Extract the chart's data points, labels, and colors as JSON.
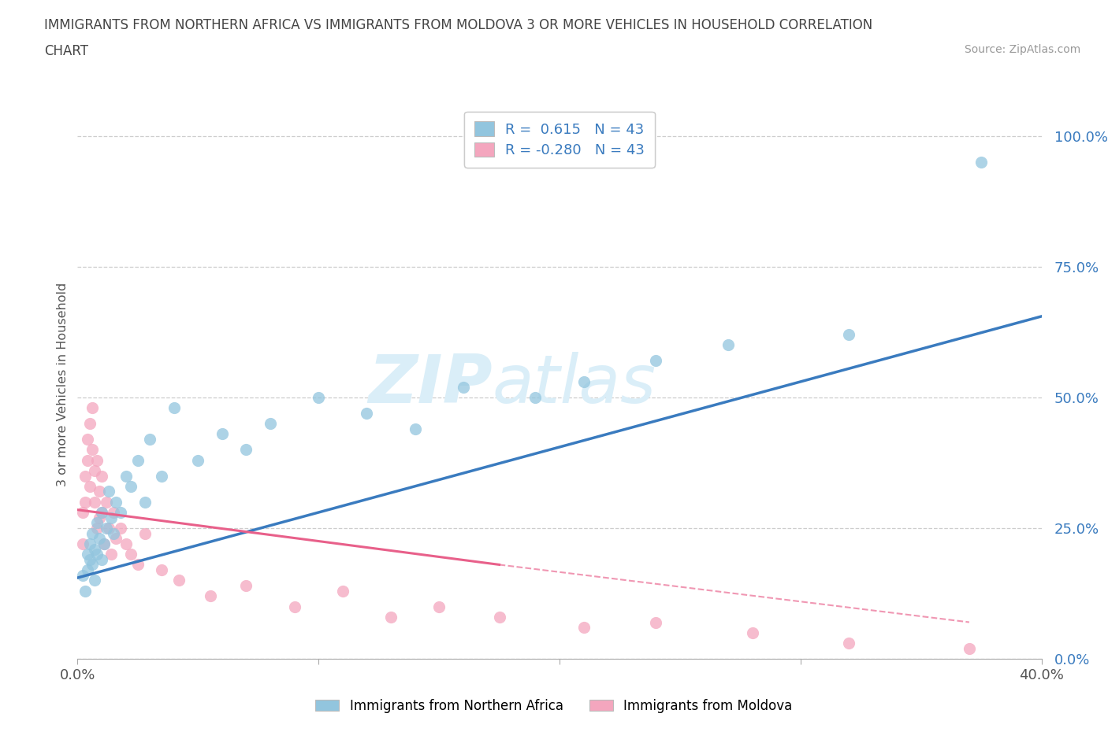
{
  "title_line1": "IMMIGRANTS FROM NORTHERN AFRICA VS IMMIGRANTS FROM MOLDOVA 3 OR MORE VEHICLES IN HOUSEHOLD CORRELATION",
  "title_line2": "CHART",
  "source_text": "Source: ZipAtlas.com",
  "ylabel": "3 or more Vehicles in Household",
  "xlim": [
    0.0,
    0.4
  ],
  "ylim": [
    0.0,
    1.05
  ],
  "ytick_labels": [
    "0.0%",
    "25.0%",
    "50.0%",
    "75.0%",
    "100.0%"
  ],
  "ytick_values": [
    0.0,
    0.25,
    0.5,
    0.75,
    1.0
  ],
  "xtick_labels": [
    "0.0%",
    "",
    "",
    "",
    "40.0%"
  ],
  "xtick_values": [
    0.0,
    0.1,
    0.2,
    0.3,
    0.4
  ],
  "R_blue": 0.615,
  "N_blue": 43,
  "R_pink": -0.28,
  "N_pink": 43,
  "blue_color": "#92c5de",
  "pink_color": "#f4a6be",
  "blue_line_color": "#3a7bbf",
  "pink_line_color": "#e8608a",
  "watermark_color": "#daeef8",
  "legend_label_blue": "Immigrants from Northern Africa",
  "legend_label_pink": "Immigrants from Moldova",
  "blue_x": [
    0.002,
    0.003,
    0.004,
    0.004,
    0.005,
    0.005,
    0.006,
    0.006,
    0.007,
    0.007,
    0.008,
    0.008,
    0.009,
    0.01,
    0.01,
    0.011,
    0.012,
    0.013,
    0.014,
    0.015,
    0.016,
    0.018,
    0.02,
    0.022,
    0.025,
    0.028,
    0.03,
    0.035,
    0.04,
    0.05,
    0.06,
    0.07,
    0.08,
    0.1,
    0.12,
    0.14,
    0.16,
    0.19,
    0.21,
    0.24,
    0.27,
    0.32,
    0.375
  ],
  "blue_y": [
    0.16,
    0.13,
    0.2,
    0.17,
    0.22,
    0.19,
    0.18,
    0.24,
    0.15,
    0.21,
    0.2,
    0.26,
    0.23,
    0.19,
    0.28,
    0.22,
    0.25,
    0.32,
    0.27,
    0.24,
    0.3,
    0.28,
    0.35,
    0.33,
    0.38,
    0.3,
    0.42,
    0.35,
    0.48,
    0.38,
    0.43,
    0.4,
    0.45,
    0.5,
    0.47,
    0.44,
    0.52,
    0.5,
    0.53,
    0.57,
    0.6,
    0.62,
    0.95
  ],
  "pink_x": [
    0.002,
    0.002,
    0.003,
    0.003,
    0.004,
    0.004,
    0.005,
    0.005,
    0.006,
    0.006,
    0.007,
    0.007,
    0.008,
    0.008,
    0.009,
    0.009,
    0.01,
    0.01,
    0.011,
    0.012,
    0.013,
    0.014,
    0.015,
    0.016,
    0.018,
    0.02,
    0.022,
    0.025,
    0.028,
    0.035,
    0.042,
    0.055,
    0.07,
    0.09,
    0.11,
    0.13,
    0.15,
    0.175,
    0.21,
    0.24,
    0.28,
    0.32,
    0.37
  ],
  "pink_y": [
    0.28,
    0.22,
    0.35,
    0.3,
    0.42,
    0.38,
    0.45,
    0.33,
    0.4,
    0.48,
    0.36,
    0.3,
    0.38,
    0.25,
    0.32,
    0.27,
    0.35,
    0.28,
    0.22,
    0.3,
    0.25,
    0.2,
    0.28,
    0.23,
    0.25,
    0.22,
    0.2,
    0.18,
    0.24,
    0.17,
    0.15,
    0.12,
    0.14,
    0.1,
    0.13,
    0.08,
    0.1,
    0.08,
    0.06,
    0.07,
    0.05,
    0.03,
    0.02
  ],
  "blue_line_x0": 0.0,
  "blue_line_y0": 0.155,
  "blue_line_x1": 0.4,
  "blue_line_y1": 0.655,
  "pink_line_x0": 0.0,
  "pink_line_y0": 0.285,
  "pink_line_x1_solid": 0.175,
  "pink_line_y1_solid": 0.18,
  "pink_line_x1_dash": 0.37,
  "pink_line_y1_dash": 0.07,
  "background_color": "#ffffff",
  "grid_color": "#c8c8c8"
}
